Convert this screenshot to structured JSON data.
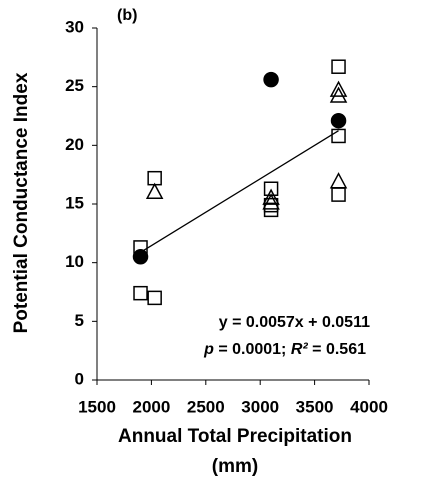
{
  "chart_data": {
    "type": "scatter",
    "panel_label": "(b)",
    "y_label": "Potential Conductance Index",
    "x_label": [
      "Annual Total Precipitation",
      "(mm)"
    ],
    "equation": "y = 0.0057x + 0.0511",
    "stats": [
      "p",
      " = 0.0001; ",
      "R²",
      " = 0.561"
    ],
    "xlim": [
      1500,
      4000
    ],
    "xticks": [
      1500,
      2000,
      2500,
      3000,
      3500,
      4000
    ],
    "ylim": [
      0,
      30
    ],
    "yticks": [
      0,
      5,
      10,
      15,
      20,
      25,
      30
    ],
    "series": [
      {
        "marker": "circle",
        "color": "#000000",
        "filled": true,
        "x": [
          1900,
          3100,
          3720
        ],
        "values": [
          10.5,
          25.6,
          22.1
        ]
      },
      {
        "marker": "square",
        "color": "#000000",
        "filled": false,
        "x": [
          1900,
          1900,
          2030,
          2030,
          3100,
          3100,
          3100,
          3720,
          3720,
          3720
        ],
        "values": [
          11.3,
          7.4,
          17.2,
          7.0,
          16.3,
          14.9,
          14.5,
          26.7,
          20.8,
          15.8
        ]
      },
      {
        "marker": "triangle",
        "color": "#000000",
        "filled": false,
        "x": [
          2030,
          3100,
          3100,
          3720,
          3720,
          3720
        ],
        "values": [
          16.0,
          15.5,
          15.1,
          24.7,
          24.2,
          16.9
        ]
      }
    ],
    "trendline": {
      "color": "#000000",
      "x": [
        1900,
        3720
      ],
      "values": [
        10.88,
        21.25
      ]
    }
  }
}
